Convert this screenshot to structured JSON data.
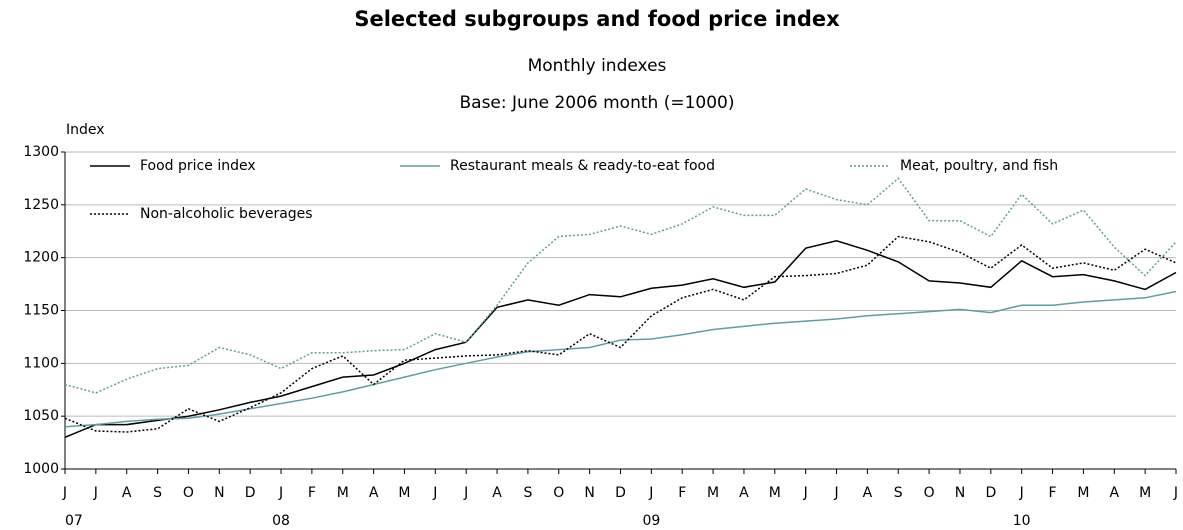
{
  "chart_data": {
    "type": "line",
    "title": "Selected subgroups and food price index",
    "subtitle": "Monthly indexes",
    "subtitle2": "Base: June 2006 month (=1000)",
    "y_label": "Index",
    "categories": [
      "J",
      "J",
      "A",
      "S",
      "O",
      "N",
      "D",
      "J",
      "F",
      "M",
      "A",
      "M",
      "J",
      "J",
      "A",
      "S",
      "O",
      "N",
      "D",
      "J",
      "F",
      "M",
      "A",
      "M",
      "J",
      "J",
      "A",
      "S",
      "O",
      "N",
      "D",
      "J",
      "F",
      "M",
      "A",
      "M",
      "J"
    ],
    "year_labels": [
      "07",
      null,
      null,
      null,
      null,
      null,
      null,
      "08",
      null,
      null,
      null,
      null,
      null,
      null,
      null,
      null,
      null,
      null,
      null,
      "09",
      null,
      null,
      null,
      null,
      null,
      null,
      null,
      null,
      null,
      null,
      null,
      "10",
      null,
      null,
      null,
      null,
      null
    ],
    "ylim": [
      1000,
      1300
    ],
    "yticks": [
      1000,
      1050,
      1100,
      1150,
      1200,
      1250,
      1300
    ],
    "grid": true,
    "series": [
      {
        "name": "Food price index",
        "color": "#000000",
        "style": "solid",
        "values": [
          1030,
          1042,
          1042,
          1046,
          1050,
          1056,
          1063,
          1069,
          1078,
          1087,
          1089,
          1100,
          1113,
          1120,
          1153,
          1160,
          1155,
          1165,
          1163,
          1171,
          1174,
          1180,
          1172,
          1177,
          1209,
          1216,
          1207,
          1196,
          1178,
          1176,
          1172,
          1197,
          1182,
          1184,
          1178,
          1170,
          1186
        ]
      },
      {
        "name": "Restaurant meals & ready-to-eat food",
        "color": "#5f9ea0",
        "style": "solid",
        "values": [
          1040,
          1042,
          1045,
          1047,
          1048,
          1052,
          1057,
          1062,
          1067,
          1073,
          1080,
          1087,
          1094,
          1100,
          1106,
          1111,
          1113,
          1115,
          1122,
          1123,
          1127,
          1132,
          1135,
          1138,
          1140,
          1142,
          1145,
          1147,
          1149,
          1151,
          1148,
          1155,
          1155,
          1158,
          1160,
          1162,
          1168
        ]
      },
      {
        "name": "Meat, poultry, and fish",
        "color": "#5f9ea0",
        "style": "dotted",
        "values": [
          1080,
          1072,
          1085,
          1095,
          1098,
          1115,
          1108,
          1095,
          1110,
          1110,
          1112,
          1113,
          1128,
          1120,
          1155,
          1195,
          1220,
          1222,
          1230,
          1222,
          1232,
          1248,
          1240,
          1240,
          1265,
          1255,
          1250,
          1275,
          1235,
          1235,
          1220,
          1260,
          1232,
          1245,
          1210,
          1183,
          1215
        ]
      },
      {
        "name": "Non-alcoholic beverages",
        "color": "#000000",
        "style": "dotted",
        "values": [
          1048,
          1036,
          1035,
          1038,
          1057,
          1045,
          1058,
          1072,
          1095,
          1107,
          1080,
          1103,
          1105,
          1107,
          1108,
          1112,
          1108,
          1128,
          1115,
          1145,
          1162,
          1170,
          1160,
          1182,
          1183,
          1185,
          1193,
          1220,
          1215,
          1205,
          1190,
          1212,
          1190,
          1195,
          1188,
          1208,
          1195
        ]
      }
    ]
  }
}
